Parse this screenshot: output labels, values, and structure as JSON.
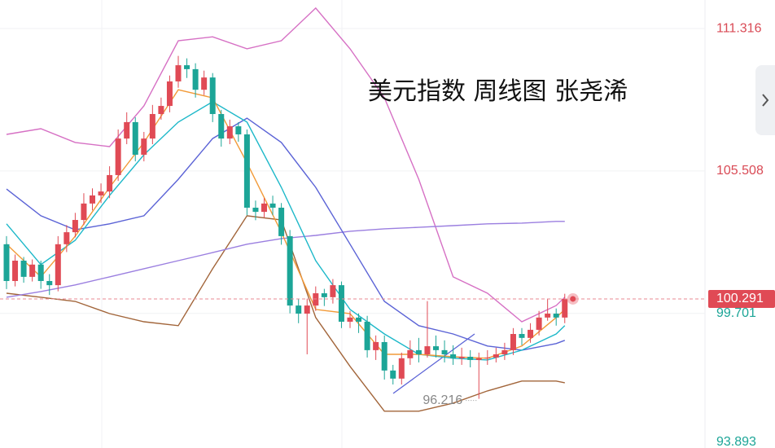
{
  "chart_data": {
    "type": "candlestick",
    "title": "美元指数 周线图 张尧浠",
    "up_color": "#e04a55",
    "down_color": "#1ca597",
    "open": [
      102.52,
      101.02,
      101.85,
      101.19,
      101.69,
      101.02,
      100.85,
      102.52,
      103.01,
      103.51,
      104.18,
      104.51,
      104.67,
      105.34,
      106.83,
      107.5,
      106.17,
      106.83,
      107.83,
      108.16,
      109.16,
      109.82,
      109.66,
      108.82,
      109.32,
      107.83,
      106.83,
      107.33,
      107.0,
      104.01,
      103.84,
      104.18,
      104.01,
      102.85,
      100.02,
      99.69,
      100.02,
      100.52,
      100.36,
      100.85,
      99.36,
      99.53,
      99.36,
      98.2,
      98.53,
      97.37,
      97.04,
      97.87,
      98.2,
      98.03,
      98.36,
      98.2,
      98.03,
      97.87,
      97.93,
      97.8,
      97.87,
      97.9,
      98.03,
      98.2,
      98.86,
      98.7,
      99.03,
      99.53,
      99.69,
      99.53
    ],
    "high": [
      102.85,
      102.1,
      102.0,
      101.9,
      101.85,
      101.3,
      102.85,
      103.3,
      103.8,
      104.6,
      104.8,
      105.0,
      105.7,
      107.2,
      107.9,
      107.7,
      107.1,
      108.2,
      108.5,
      109.4,
      110.2,
      110.1,
      109.9,
      109.6,
      109.5,
      108.0,
      107.6,
      107.5,
      107.2,
      104.3,
      104.4,
      104.5,
      104.2,
      103.1,
      100.3,
      100.3,
      100.8,
      100.7,
      101.1,
      101.0,
      99.8,
      99.7,
      99.6,
      98.8,
      98.8,
      97.6,
      98.1,
      98.6,
      98.7,
      100.2,
      98.8,
      98.6,
      98.4,
      98.3,
      98.2,
      98.1,
      98.2,
      98.3,
      98.5,
      99.1,
      99.1,
      99.3,
      99.8,
      100.3,
      99.9,
      100.5
    ],
    "low": [
      100.69,
      100.8,
      100.95,
      101.0,
      100.7,
      100.45,
      100.6,
      102.2,
      102.8,
      103.3,
      103.9,
      104.2,
      104.4,
      105.1,
      106.6,
      105.9,
      105.9,
      106.6,
      107.6,
      107.9,
      108.9,
      109.3,
      108.5,
      108.6,
      107.5,
      106.5,
      106.6,
      106.7,
      103.7,
      103.5,
      103.6,
      103.7,
      102.5,
      99.7,
      99.3,
      98.03,
      99.8,
      100.0,
      100.1,
      99.1,
      99.1,
      98.9,
      97.9,
      97.8,
      97.0,
      96.8,
      96.8,
      97.6,
      97.7,
      97.9,
      97.9,
      97.7,
      97.6,
      97.6,
      97.5,
      96.216,
      97.6,
      97.7,
      97.8,
      98.0,
      98.4,
      98.5,
      98.8,
      99.4,
      99.2,
      99.3
    ],
    "close": [
      101.02,
      101.85,
      101.19,
      101.69,
      101.02,
      100.85,
      102.52,
      103.01,
      103.51,
      104.18,
      104.51,
      104.67,
      105.34,
      106.83,
      107.5,
      106.17,
      106.83,
      107.83,
      108.16,
      109.16,
      109.82,
      109.66,
      108.82,
      109.32,
      107.83,
      106.83,
      107.33,
      107.0,
      104.01,
      103.84,
      104.18,
      104.01,
      102.85,
      100.02,
      99.69,
      100.02,
      100.52,
      100.36,
      100.85,
      99.36,
      99.53,
      99.36,
      98.2,
      98.53,
      97.37,
      97.04,
      97.87,
      98.2,
      98.03,
      98.36,
      98.2,
      98.03,
      97.87,
      97.93,
      97.8,
      97.87,
      97.9,
      98.03,
      98.2,
      98.86,
      98.7,
      99.03,
      99.53,
      99.69,
      99.53,
      100.291
    ],
    "lines": [
      {
        "color": "#d670c4",
        "x": [
          0,
          4,
          8,
          12,
          16,
          20,
          24,
          28,
          32,
          36,
          40,
          44,
          48,
          52,
          56,
          60,
          64,
          65
        ],
        "values": [
          107.0,
          107.23,
          106.67,
          106.5,
          108.16,
          110.82,
          110.98,
          110.49,
          110.82,
          112.15,
          110.49,
          108.49,
          105.17,
          101.19,
          100.52,
          99.36,
          100.02,
          100.36
        ]
      },
      {
        "color": "#a2653a",
        "x": [
          0,
          4,
          8,
          12,
          16,
          20,
          24,
          28,
          32,
          36,
          40,
          44,
          48,
          52,
          56,
          60,
          64,
          65
        ],
        "values": [
          100.52,
          100.36,
          100.19,
          99.69,
          99.36,
          99.2,
          101.52,
          103.68,
          103.51,
          99.53,
          97.54,
          95.71,
          95.71,
          96.04,
          96.54,
          96.94,
          96.94,
          96.87
        ]
      },
      {
        "color": "#9b7fe0",
        "x": [
          0,
          4,
          8,
          12,
          16,
          20,
          24,
          28,
          32,
          36,
          40,
          44,
          48,
          52,
          56,
          60,
          64,
          65
        ],
        "values": [
          100.36,
          100.59,
          100.86,
          101.19,
          101.52,
          101.85,
          102.18,
          102.52,
          102.75,
          102.88,
          103.05,
          103.15,
          103.21,
          103.28,
          103.35,
          103.38,
          103.45,
          103.45
        ]
      },
      {
        "color": "#5b63d6",
        "x": [
          0,
          4,
          8,
          12,
          16,
          20,
          24,
          28,
          32,
          36,
          40,
          44,
          48,
          52,
          56,
          60,
          64,
          65
        ],
        "values": [
          104.77,
          103.68,
          103.11,
          103.35,
          103.68,
          105.17,
          106.83,
          107.66,
          106.67,
          104.84,
          102.52,
          100.19,
          99.2,
          98.86,
          98.37,
          98.2,
          98.47,
          98.6
        ]
      },
      {
        "color": "#1db8c9",
        "x": [
          0,
          4,
          8,
          12,
          16,
          20,
          24,
          28,
          32,
          36,
          40,
          44,
          48,
          52,
          56,
          60,
          64,
          65
        ],
        "values": [
          103.35,
          101.69,
          102.68,
          104.51,
          106.17,
          107.5,
          108.33,
          107.5,
          104.84,
          101.85,
          99.86,
          98.86,
          98.03,
          97.87,
          97.8,
          98.2,
          98.86,
          99.2
        ]
      },
      {
        "color": "#f29a38",
        "x": [
          0,
          4,
          8,
          12,
          16,
          20,
          24,
          28,
          32,
          36,
          40,
          44,
          48,
          52,
          56,
          60,
          64,
          65
        ],
        "values": [
          102.52,
          101.19,
          102.85,
          104.84,
          106.67,
          108.82,
          108.49,
          105.84,
          103.01,
          99.86,
          99.69,
          98.03,
          98.03,
          97.93,
          97.87,
          98.37,
          99.53,
          99.86
        ]
      }
    ],
    "ylim": [
      94.21,
      112.48
    ],
    "yticks": [
      111.316,
      105.508,
      99.701,
      93.893
    ],
    "grid": true
  }
}
